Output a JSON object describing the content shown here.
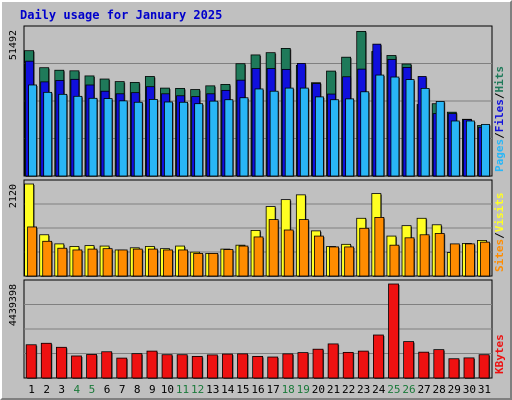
{
  "title": "Daily usage for January 2025",
  "days": [
    "1",
    "2",
    "3",
    "4",
    "5",
    "6",
    "7",
    "8",
    "9",
    "10",
    "11",
    "12",
    "13",
    "14",
    "15",
    "16",
    "17",
    "18",
    "19",
    "20",
    "21",
    "22",
    "23",
    "24",
    "25",
    "26",
    "27",
    "28",
    "29",
    "30",
    "31"
  ],
  "weekend_days": [
    "4",
    "5",
    "11",
    "12",
    "18",
    "19",
    "25",
    "26"
  ],
  "colors": {
    "hits": "#1f7a5a",
    "files": "#1010dd",
    "pages": "#29b6f6",
    "visits": "#ffff22",
    "sites": "#ff8c00",
    "kbytes": "#ee1111",
    "weekday_label": "#000000",
    "weekend_label": "#1a7a3a",
    "title": "#0000cc"
  },
  "chart_data": [
    {
      "type": "bar",
      "panel": "hits-files-pages",
      "y_tick_label": "51492",
      "ylim": [
        0,
        51492
      ],
      "legend": [
        "Pages",
        "/",
        "Files",
        "/",
        "Hits"
      ],
      "series": [
        {
          "name": "Hits",
          "values": [
            44200,
            38200,
            37300,
            37100,
            35300,
            34200,
            33300,
            33000,
            35100,
            31000,
            30900,
            30500,
            31800,
            32300,
            39600,
            42700,
            43500,
            45000,
            39000,
            32900,
            37000,
            41900,
            51000,
            43900,
            42500,
            39500,
            25200,
            25500,
            22500,
            20000,
            17800
          ]
        },
        {
          "name": "Files",
          "values": [
            40500,
            33200,
            33700,
            34100,
            32100,
            29900,
            29000,
            29400,
            31500,
            29000,
            28300,
            28000,
            29000,
            30200,
            33800,
            37900,
            37900,
            37600,
            39700,
            32600,
            28900,
            35000,
            37700,
            46500,
            41100,
            38300,
            35100,
            22000,
            22000,
            19900,
            17200
          ]
        },
        {
          "name": "Pages",
          "values": [
            32100,
            29500,
            28800,
            28100,
            27400,
            27300,
            26500,
            26000,
            27000,
            26100,
            26000,
            25500,
            26400,
            26900,
            27600,
            30700,
            29900,
            31000,
            31000,
            27900,
            26900,
            27200,
            29700,
            35600,
            34900,
            34000,
            30900,
            26300,
            19400,
            19400,
            18200
          ]
        }
      ]
    },
    {
      "type": "bar",
      "panel": "visits-sites",
      "y_tick_label": "2120",
      "ylim": [
        0,
        2120
      ],
      "legend": [
        "Sites",
        "/",
        "Visits"
      ],
      "series": [
        {
          "name": "Visits",
          "values": [
            2120,
            950,
            740,
            680,
            700,
            690,
            600,
            650,
            680,
            630,
            690,
            550,
            520,
            620,
            710,
            1050,
            1600,
            1760,
            1870,
            1040,
            680,
            730,
            1330,
            1900,
            920,
            1160,
            1330,
            1180,
            540,
            750,
            820
          ]
        },
        {
          "name": "Sites",
          "values": [
            1130,
            800,
            640,
            600,
            620,
            630,
            600,
            620,
            620,
            600,
            600,
            520,
            520,
            610,
            690,
            900,
            1300,
            1060,
            1300,
            920,
            670,
            670,
            1100,
            1350,
            710,
            880,
            950,
            980,
            740,
            740,
            780
          ]
        }
      ]
    },
    {
      "type": "bar",
      "panel": "kbytes",
      "y_tick_label": "4439398",
      "ylim": [
        0,
        4439398
      ],
      "legend": [
        "KBytes"
      ],
      "series": [
        {
          "name": "KBytes",
          "values": [
            1570000,
            1640000,
            1450000,
            1040000,
            1110000,
            1240000,
            940000,
            1150000,
            1270000,
            1100000,
            1100000,
            1020000,
            1090000,
            1130000,
            1140000,
            1020000,
            990000,
            1140000,
            1200000,
            1360000,
            1610000,
            1210000,
            1270000,
            2030000,
            4439398,
            1720000,
            1220000,
            1340000,
            910000,
            950000,
            1100000
          ]
        }
      ]
    }
  ]
}
